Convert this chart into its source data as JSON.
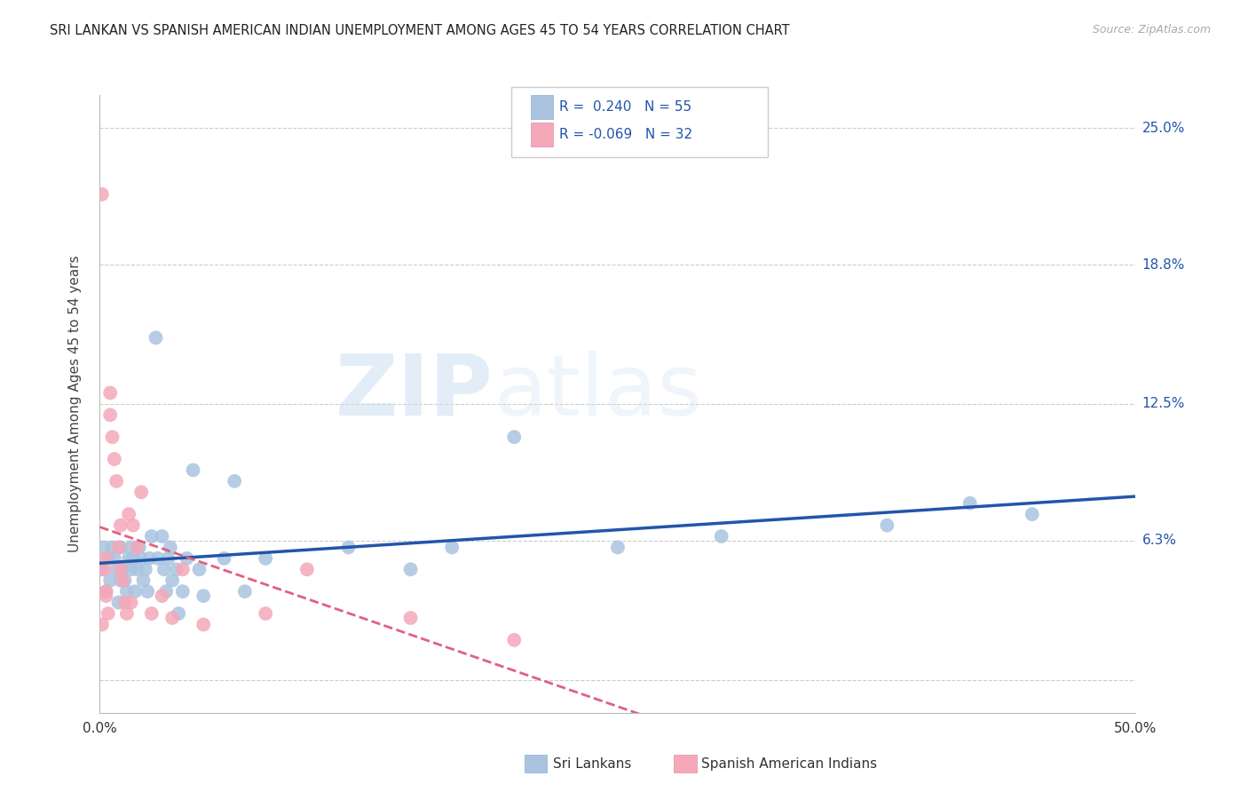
{
  "title": "SRI LANKAN VS SPANISH AMERICAN INDIAN UNEMPLOYMENT AMONG AGES 45 TO 54 YEARS CORRELATION CHART",
  "source": "Source: ZipAtlas.com",
  "ylabel": "Unemployment Among Ages 45 to 54 years",
  "xlim": [
    0.0,
    0.5
  ],
  "ylim": [
    -0.015,
    0.265
  ],
  "yticks": [
    0.0,
    0.063,
    0.125,
    0.188,
    0.25
  ],
  "ytick_labels": [
    "",
    "6.3%",
    "12.5%",
    "18.8%",
    "25.0%"
  ],
  "xticks": [
    0.0,
    0.1,
    0.2,
    0.3,
    0.4,
    0.5
  ],
  "xtick_labels": [
    "0.0%",
    "",
    "",
    "",
    "",
    "50.0%"
  ],
  "sri_lankan_R": 0.24,
  "sri_lankan_N": 55,
  "spanish_R": -0.069,
  "spanish_N": 32,
  "sri_lankan_color": "#aac4e0",
  "spanish_color": "#f4a8b8",
  "sri_lankan_line_color": "#2255aa",
  "spanish_line_color": "#e06080",
  "sri_lankans_x": [
    0.001,
    0.002,
    0.003,
    0.004,
    0.005,
    0.006,
    0.007,
    0.008,
    0.009,
    0.01,
    0.01,
    0.011,
    0.012,
    0.013,
    0.014,
    0.015,
    0.015,
    0.016,
    0.017,
    0.018,
    0.019,
    0.02,
    0.021,
    0.022,
    0.023,
    0.024,
    0.025,
    0.027,
    0.028,
    0.03,
    0.031,
    0.032,
    0.033,
    0.034,
    0.035,
    0.037,
    0.038,
    0.04,
    0.042,
    0.045,
    0.048,
    0.05,
    0.06,
    0.065,
    0.07,
    0.08,
    0.12,
    0.15,
    0.17,
    0.2,
    0.25,
    0.3,
    0.38,
    0.42,
    0.45
  ],
  "sri_lankans_y": [
    0.05,
    0.06,
    0.04,
    0.055,
    0.045,
    0.06,
    0.055,
    0.05,
    0.035,
    0.045,
    0.06,
    0.05,
    0.045,
    0.04,
    0.055,
    0.06,
    0.05,
    0.055,
    0.04,
    0.05,
    0.06,
    0.055,
    0.045,
    0.05,
    0.04,
    0.055,
    0.065,
    0.155,
    0.055,
    0.065,
    0.05,
    0.04,
    0.055,
    0.06,
    0.045,
    0.05,
    0.03,
    0.04,
    0.055,
    0.095,
    0.05,
    0.038,
    0.055,
    0.09,
    0.04,
    0.055,
    0.06,
    0.05,
    0.06,
    0.11,
    0.06,
    0.065,
    0.07,
    0.08,
    0.075
  ],
  "spanish_x": [
    0.001,
    0.002,
    0.003,
    0.003,
    0.004,
    0.005,
    0.005,
    0.006,
    0.007,
    0.008,
    0.009,
    0.01,
    0.01,
    0.011,
    0.012,
    0.013,
    0.014,
    0.015,
    0.016,
    0.018,
    0.02,
    0.025,
    0.03,
    0.035,
    0.04,
    0.05,
    0.08,
    0.1,
    0.15,
    0.2,
    0.001,
    0.003
  ],
  "spanish_y": [
    0.22,
    0.05,
    0.055,
    0.04,
    0.03,
    0.13,
    0.12,
    0.11,
    0.1,
    0.09,
    0.06,
    0.05,
    0.07,
    0.045,
    0.035,
    0.03,
    0.075,
    0.035,
    0.07,
    0.06,
    0.085,
    0.03,
    0.038,
    0.028,
    0.05,
    0.025,
    0.03,
    0.05,
    0.028,
    0.018,
    0.025,
    0.038
  ]
}
